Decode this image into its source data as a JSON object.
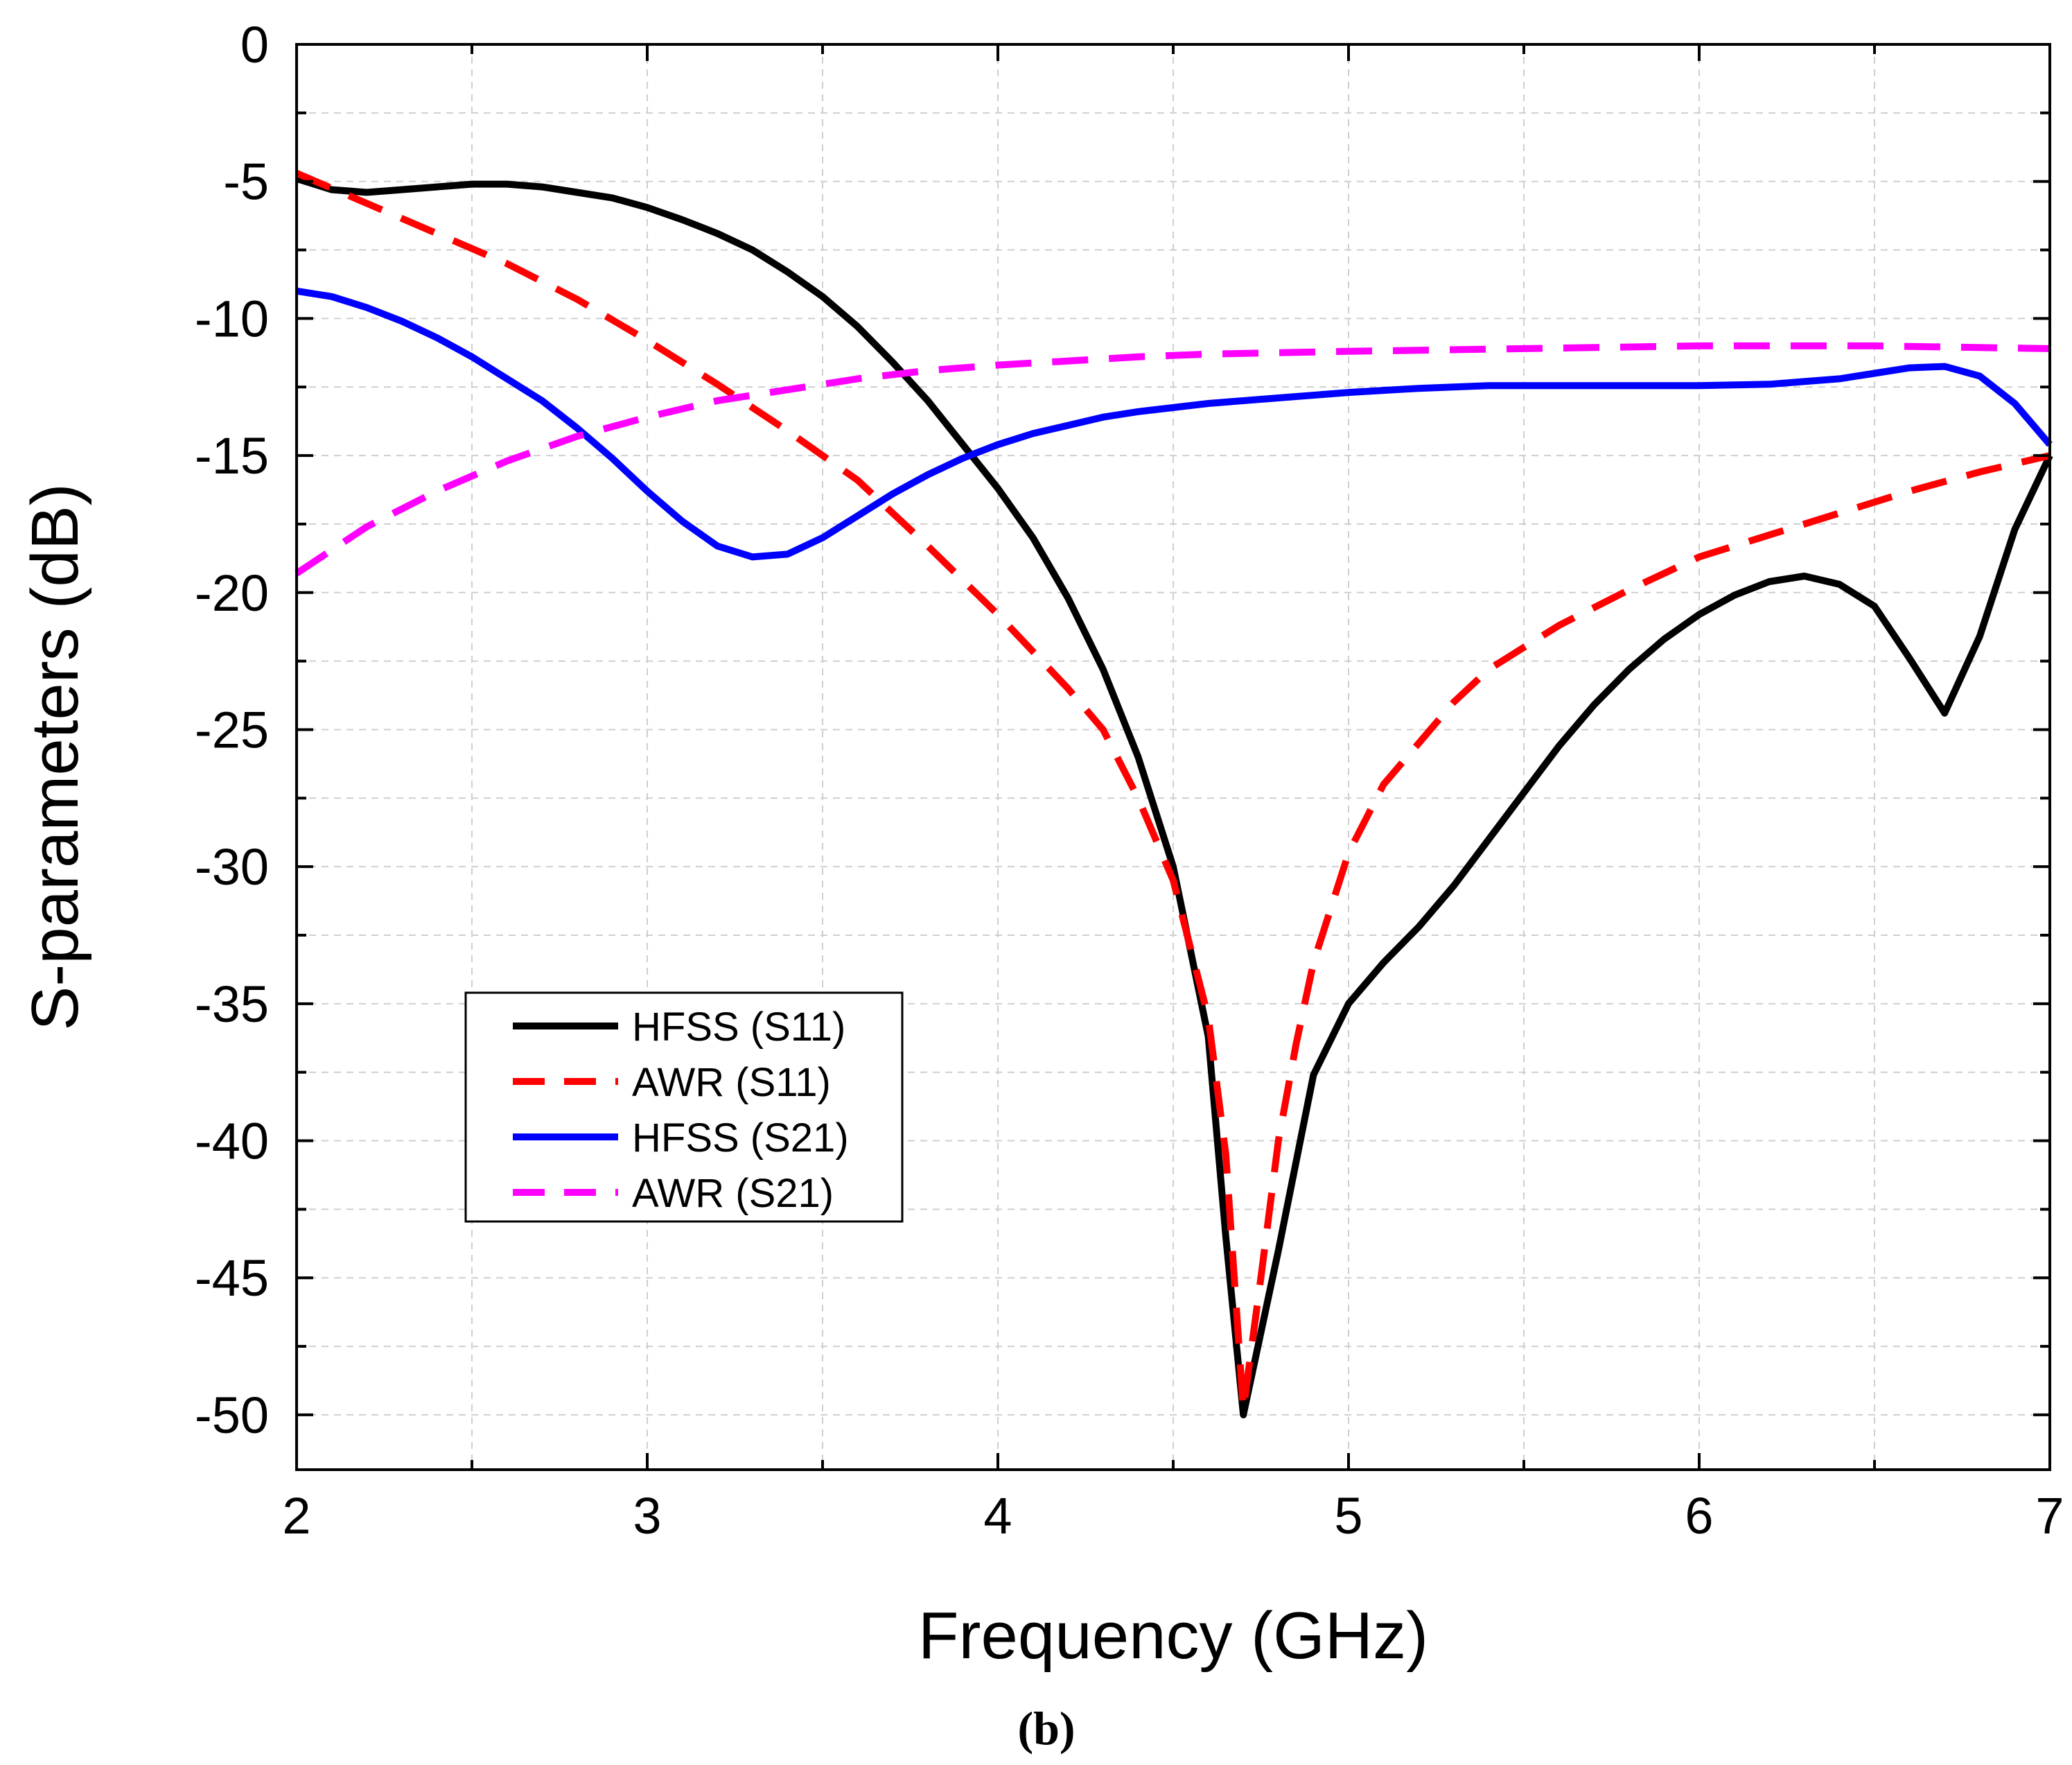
{
  "chart_data": {
    "type": "line",
    "xlabel": "Frequency (GHz)",
    "ylabel": "S-parameters (dB)",
    "caption": "(b)",
    "xlim": [
      2,
      7
    ],
    "ylim": [
      -52,
      0
    ],
    "xticks": [
      2,
      3,
      4,
      5,
      6,
      7
    ],
    "yticks": [
      0,
      -5,
      -10,
      -15,
      -20,
      -25,
      -30,
      -35,
      -40,
      -45,
      -50
    ],
    "xtick_labels": [
      "2",
      "3",
      "4",
      "5",
      "6",
      "7"
    ],
    "ytick_labels": [
      "0",
      "-5",
      "-10",
      "-15",
      "-20",
      "-25",
      "-30",
      "-35",
      "-40",
      "-45",
      "-50"
    ],
    "grid": true,
    "legend_position": "lower-left",
    "series": [
      {
        "name": "HFSS (S11)",
        "color": "#000000",
        "dash": "solid",
        "x": [
          2.0,
          2.1,
          2.2,
          2.3,
          2.4,
          2.5,
          2.6,
          2.7,
          2.8,
          2.9,
          3.0,
          3.1,
          3.2,
          3.3,
          3.4,
          3.5,
          3.6,
          3.7,
          3.8,
          3.9,
          4.0,
          4.1,
          4.2,
          4.3,
          4.4,
          4.5,
          4.6,
          4.65,
          4.7,
          4.8,
          4.9,
          5.0,
          5.1,
          5.2,
          5.3,
          5.4,
          5.5,
          5.6,
          5.7,
          5.8,
          5.9,
          6.0,
          6.1,
          6.2,
          6.3,
          6.4,
          6.5,
          6.6,
          6.7,
          6.8,
          6.9,
          7.0
        ],
        "y": [
          -4.9,
          -5.3,
          -5.4,
          -5.3,
          -5.2,
          -5.1,
          -5.1,
          -5.2,
          -5.4,
          -5.6,
          -5.95,
          -6.4,
          -6.9,
          -7.5,
          -8.3,
          -9.2,
          -10.3,
          -11.6,
          -13.0,
          -14.6,
          -16.2,
          -18.0,
          -20.2,
          -22.8,
          -26.0,
          -30.0,
          -36.2,
          -43.5,
          -50.0,
          -44.0,
          -37.6,
          -35.0,
          -33.5,
          -32.2,
          -30.7,
          -29.0,
          -27.3,
          -25.6,
          -24.1,
          -22.8,
          -21.7,
          -20.8,
          -20.1,
          -19.6,
          -19.4,
          -19.7,
          -20.5,
          -22.4,
          -24.4,
          -21.6,
          -17.7,
          -15.0
        ]
      },
      {
        "name": "AWR (S11)",
        "color": "#ff0000",
        "dash": "dashed",
        "x": [
          2.0,
          2.2,
          2.4,
          2.6,
          2.8,
          3.0,
          3.2,
          3.4,
          3.6,
          3.8,
          4.0,
          4.2,
          4.3,
          4.4,
          4.5,
          4.6,
          4.65,
          4.7,
          4.75,
          4.8,
          4.85,
          4.9,
          5.0,
          5.1,
          5.2,
          5.3,
          5.4,
          5.6,
          5.8,
          6.0,
          6.2,
          6.4,
          6.6,
          6.8,
          7.0
        ],
        "y": [
          -4.7,
          -5.8,
          -6.9,
          -8.0,
          -9.3,
          -10.8,
          -12.4,
          -14.1,
          -15.9,
          -18.3,
          -20.8,
          -23.5,
          -25.0,
          -27.5,
          -30.5,
          -35.5,
          -40.5,
          -49.8,
          -45.0,
          -40.0,
          -36.5,
          -33.5,
          -29.5,
          -27.0,
          -25.5,
          -24.0,
          -22.8,
          -21.2,
          -19.9,
          -18.7,
          -17.9,
          -17.1,
          -16.3,
          -15.6,
          -15.0
        ]
      },
      {
        "name": "HFSS (S21)",
        "color": "#0000ff",
        "dash": "solid",
        "x": [
          2.0,
          2.1,
          2.2,
          2.3,
          2.4,
          2.5,
          2.6,
          2.7,
          2.8,
          2.9,
          3.0,
          3.1,
          3.2,
          3.3,
          3.4,
          3.5,
          3.6,
          3.7,
          3.8,
          3.9,
          4.0,
          4.1,
          4.2,
          4.3,
          4.4,
          4.6,
          4.8,
          5.0,
          5.2,
          5.4,
          5.6,
          5.8,
          6.0,
          6.2,
          6.4,
          6.5,
          6.6,
          6.7,
          6.8,
          6.9,
          7.0
        ],
        "y": [
          -9.0,
          -9.2,
          -9.6,
          -10.1,
          -10.7,
          -11.4,
          -12.2,
          -13.0,
          -14.0,
          -15.1,
          -16.3,
          -17.4,
          -18.3,
          -18.7,
          -18.6,
          -18.0,
          -17.2,
          -16.4,
          -15.7,
          -15.1,
          -14.6,
          -14.2,
          -13.9,
          -13.6,
          -13.4,
          -13.1,
          -12.9,
          -12.7,
          -12.55,
          -12.45,
          -12.45,
          -12.45,
          -12.45,
          -12.4,
          -12.2,
          -12.0,
          -11.8,
          -11.75,
          -12.1,
          -13.1,
          -14.6
        ]
      },
      {
        "name": "AWR (S21)",
        "color": "#ff00ff",
        "dash": "dashed",
        "x": [
          2.0,
          2.2,
          2.4,
          2.6,
          2.8,
          3.0,
          3.2,
          3.4,
          3.6,
          3.8,
          4.0,
          4.2,
          4.4,
          4.6,
          5.0,
          5.5,
          6.0,
          6.5,
          7.0
        ],
        "y": [
          -19.3,
          -17.6,
          -16.3,
          -15.2,
          -14.3,
          -13.6,
          -13.0,
          -12.6,
          -12.2,
          -11.9,
          -11.7,
          -11.55,
          -11.4,
          -11.3,
          -11.2,
          -11.1,
          -11.0,
          -11.0,
          -11.1
        ]
      }
    ]
  }
}
